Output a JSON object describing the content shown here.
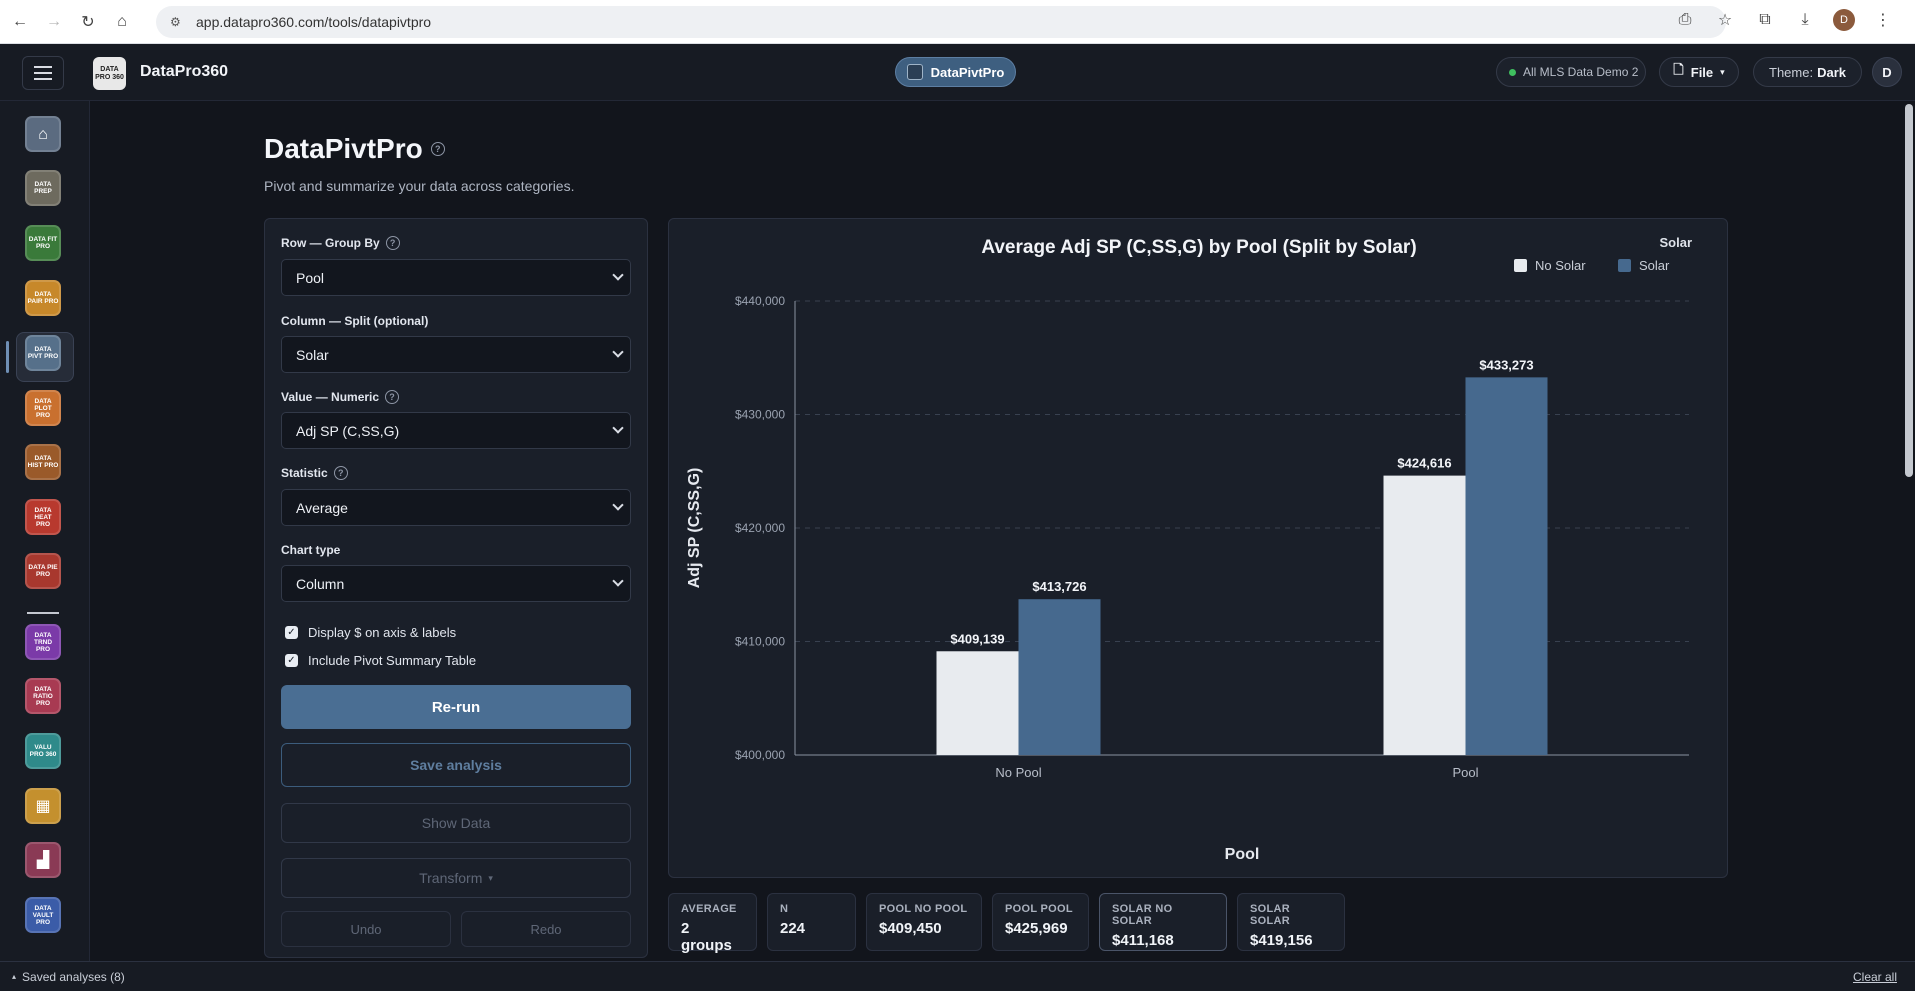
{
  "browser": {
    "url": "app.datapro360.com/tools/datapivtpro",
    "profile_initial": "D"
  },
  "header": {
    "logo_text": "DATA PRO 360",
    "brand": "DataPro360",
    "current_tool": "DataPivtPro",
    "dataset": "All MLS Data Demo 2",
    "file_label": "File",
    "theme_label": "Theme:",
    "theme_value": "Dark",
    "user_initial": "D"
  },
  "sidebar": {
    "items": [
      {
        "name": "home",
        "text": "⌂",
        "color": "#5b6b80"
      },
      {
        "name": "data-prep-pro",
        "text": "DATA PREP",
        "color": "#6d6a5e"
      },
      {
        "name": "data-fit-pro",
        "text": "DATA FIT PRO",
        "color": "#3a7a3a"
      },
      {
        "name": "data-pair-pro",
        "text": "DATA PAIR PRO",
        "color": "#c7882a"
      },
      {
        "name": "data-pivt-pro",
        "text": "DATA PIVT PRO",
        "color": "#56708a"
      },
      {
        "name": "data-plot-pro",
        "text": "DATA PLOT PRO",
        "color": "#c9702f"
      },
      {
        "name": "data-hist-pro",
        "text": "DATA HIST PRO",
        "color": "#9a5a2a"
      },
      {
        "name": "data-heat-pro",
        "text": "DATA HEAT PRO",
        "color": "#b8392e"
      },
      {
        "name": "data-pie-pro",
        "text": "DATA PIE PRO",
        "color": "#a8382e"
      },
      {
        "name": "data-trnd-pro",
        "text": "DATA TRND PRO",
        "color": "#7b3aa8"
      },
      {
        "name": "data-ratio-pro",
        "text": "DATA RATIO PRO",
        "color": "#a83a52"
      },
      {
        "name": "valu-pro-360",
        "text": "VALU PRO 360",
        "color": "#2f8a8a"
      },
      {
        "name": "grid-tool",
        "text": "▦",
        "color": "#c4902e"
      },
      {
        "name": "bar-tool",
        "text": "▟",
        "color": "#8a3a55"
      },
      {
        "name": "data-vault-pro",
        "text": "DATA VAULT PRO",
        "color": "#3b5ca8"
      }
    ]
  },
  "page": {
    "title": "DataPivtPro",
    "subtitle": "Pivot and summarize your data across categories."
  },
  "controls": {
    "row_label": "Row — Group By",
    "row_value": "Pool",
    "column_label": "Column — Split (optional)",
    "column_value": "Solar",
    "value_label": "Value — Numeric",
    "value_value": "Adj SP (C,SS,G)",
    "statistic_label": "Statistic",
    "statistic_value": "Average",
    "chart_type_label": "Chart type",
    "chart_type_value": "Column",
    "display_dollar_label": "Display $ on axis & labels",
    "include_table_label": "Include Pivot Summary Table",
    "rerun_label": "Re-run",
    "save_label": "Save analysis",
    "show_data_label": "Show Data",
    "transform_label": "Transform",
    "undo_label": "Undo",
    "redo_label": "Redo"
  },
  "chart_data": {
    "type": "bar",
    "title": "Average Adj SP (C,SS,G) by Pool (Split by Solar)",
    "xlabel": "Pool",
    "ylabel": "Adj SP (C,SS,G)",
    "categories": [
      "No Pool",
      "Pool"
    ],
    "series": [
      {
        "name": "No Solar",
        "values": [
          409139,
          424616
        ],
        "color": "#e8ebef"
      },
      {
        "name": "Solar",
        "values": [
          413726,
          433273
        ],
        "color": "#46698e"
      }
    ],
    "data_labels": [
      [
        "$409,139",
        "$424,616"
      ],
      [
        "$413,726",
        "$433,273"
      ]
    ],
    "ylim": [
      400000,
      440000
    ],
    "yticks": [
      400000,
      410000,
      420000,
      430000,
      440000
    ],
    "ytick_labels": [
      "$400,000",
      "$410,000",
      "$420,000",
      "$430,000",
      "$440,000"
    ],
    "legend_title": "Solar",
    "legend_position": "top-right",
    "grid": true
  },
  "stats": [
    {
      "key": "AVERAGE",
      "value": "2 groups"
    },
    {
      "key": "N",
      "value": "224"
    },
    {
      "key": "POOL NO POOL",
      "value": "$409,450"
    },
    {
      "key": "POOL POOL",
      "value": "$425,969"
    },
    {
      "key": "SOLAR NO SOLAR",
      "value": "$411,168"
    },
    {
      "key": "SOLAR SOLAR",
      "value": "$419,156"
    }
  ],
  "bottom": {
    "saved_label": "Saved analyses (8)",
    "clear_label": "Clear all"
  }
}
